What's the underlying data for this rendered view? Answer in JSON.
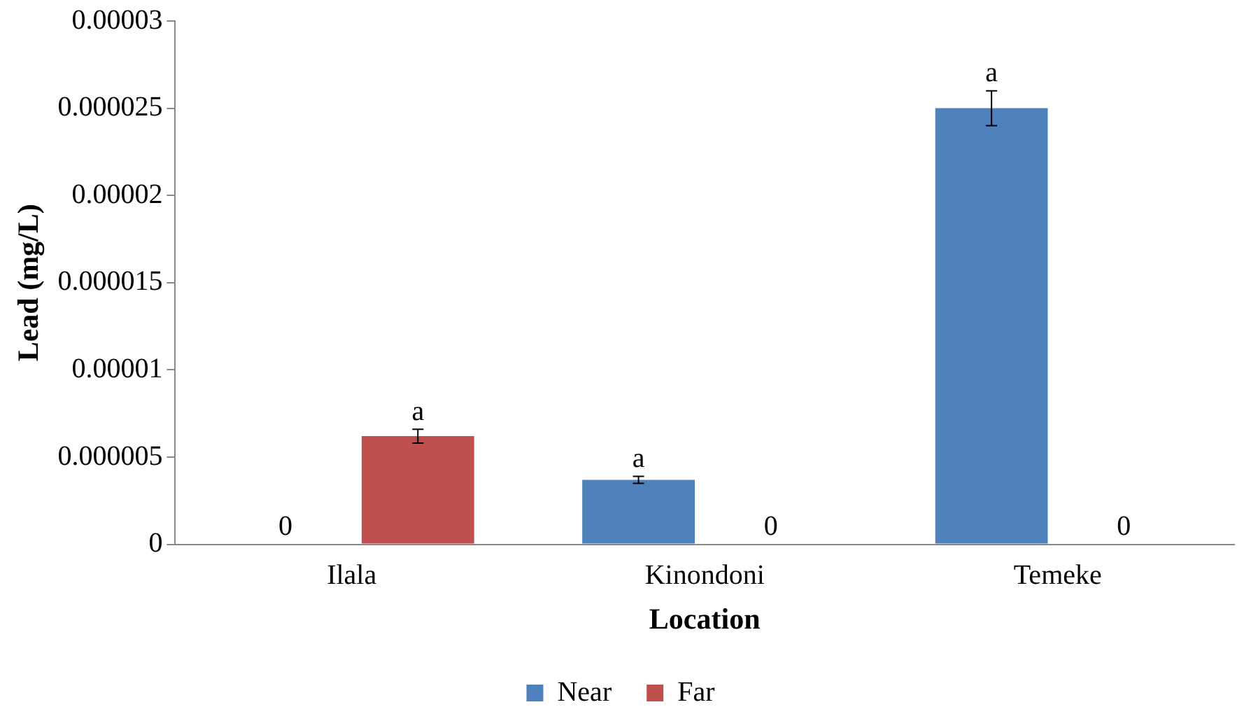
{
  "chart_data": {
    "type": "bar",
    "xlabel": "Location",
    "ylabel": "Lead (mg/L)",
    "categories": [
      "Ilala",
      "Kinondoni",
      "Temeke"
    ],
    "series": [
      {
        "name": "Near",
        "color": "#4f81bd",
        "values": [
          0,
          3.7e-06,
          2.5e-05
        ],
        "errors": [
          null,
          2e-07,
          1e-06
        ]
      },
      {
        "name": "Far",
        "color": "#c0504d",
        "values": [
          6.2e-06,
          0,
          0
        ],
        "errors": [
          4e-07,
          null,
          null
        ]
      }
    ],
    "ylim": [
      0,
      3e-05
    ],
    "yticks": [
      0,
      {
        "value": 5e-06,
        "label": "0.000005"
      },
      {
        "value": 1e-05,
        "label": "0.00001"
      },
      {
        "value": 1.5e-05,
        "label": "0.000015"
      },
      {
        "value": 2e-05,
        "label": "0.00002"
      },
      {
        "value": 2.5e-05,
        "label": "0.000025"
      },
      {
        "value": 3e-05,
        "label": "0.00003"
      }
    ],
    "annotations": [
      "0",
      "a",
      "a",
      "0",
      "a",
      "0"
    ],
    "grid": false,
    "legend": "bottom"
  }
}
